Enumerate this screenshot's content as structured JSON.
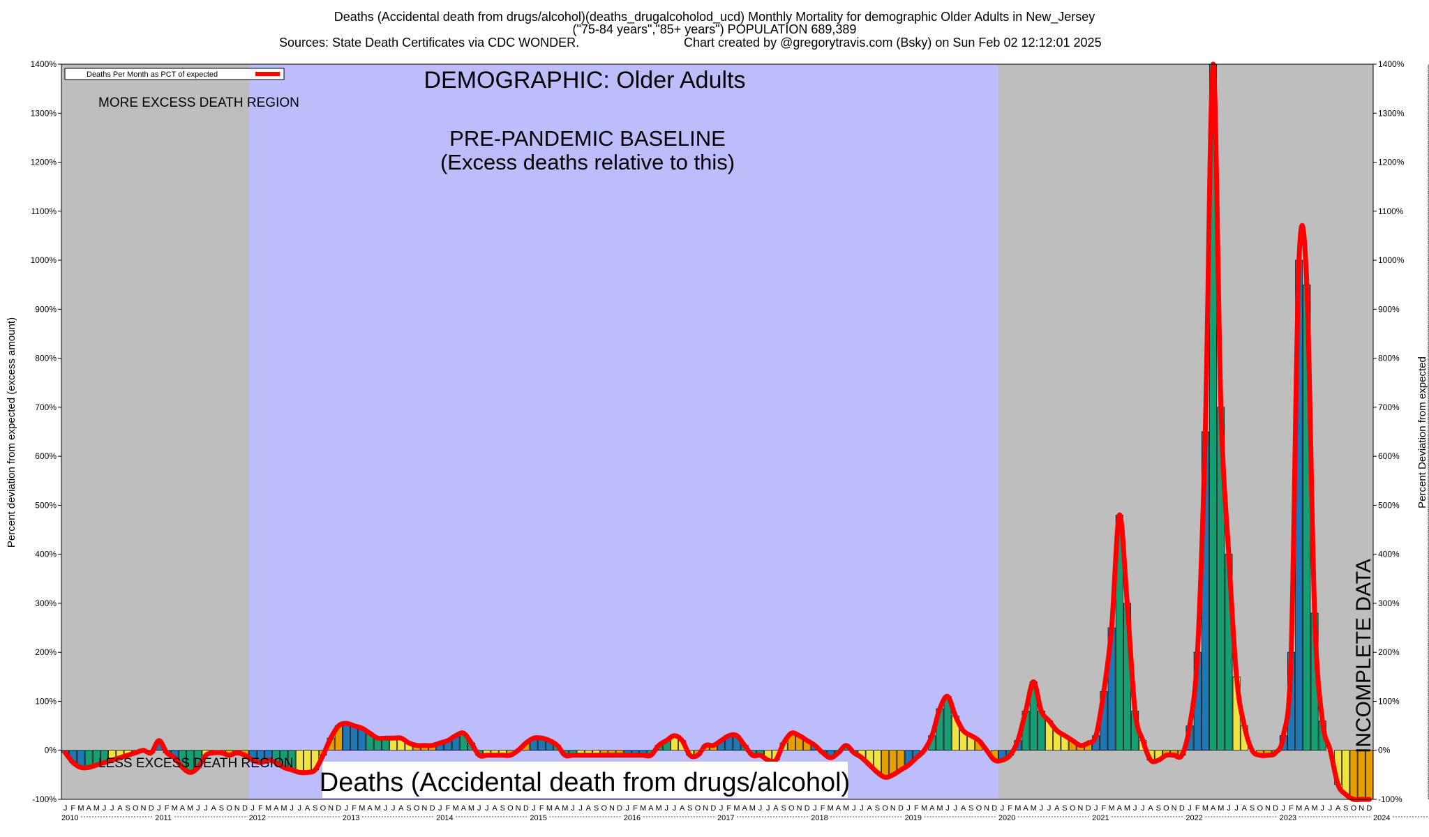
{
  "header": {
    "line1": "Deaths (Accidental death from drugs/alcohol)(deaths_drugalcoholod_ucd) Monthly Mortality for demographic Older Adults in New_Jersey",
    "line2": "(\"75-84 years\",\"85+ years\") POPULATION 689,389",
    "line3_left": "Sources: State Death Certificates via CDC WONDER.",
    "line3_right": "Chart created by @gregorytravis.com (Bsky) on Sun Feb 02 12:12:01 2025"
  },
  "annotations": {
    "demographic": "DEMOGRAPHIC: Older Adults",
    "baseline_line1": "PRE-PANDEMIC BASELINE",
    "baseline_line2": "(Excess deaths relative to this)",
    "more_excess": "MORE EXCESS DEATH REGION",
    "less_excess": "LESS EXCESS DEATH REGION",
    "incomplete": "INCOMPLETE DATA",
    "cause_label": "Deaths (Accidental death from drugs/alcohol)"
  },
  "legend": {
    "label": "Deaths Per Month as PCT of expected"
  },
  "colors": {
    "gray_region": "#bebebe",
    "baseline_region": "#bdbdfb",
    "line": "#ff0000",
    "bar_green": "#179e73",
    "bar_blue": "#1f78b4",
    "bar_orange": "#e69f00",
    "bar_yellow": "#f0e442"
  },
  "chart_data": {
    "type": "bar",
    "title": "Deaths (Accidental death from drugs/alcohol)(deaths_drugalcoholod_ucd) Monthly Mortality for demographic Older Adults in New_Jersey",
    "ylabel_left": "Percent deviation from expected (excess amount)",
    "ylabel_right": "Percent Deviation from expected",
    "ylim": [
      -100,
      1400
    ],
    "y_ticks": [
      -100,
      0,
      100,
      200,
      300,
      400,
      500,
      600,
      700,
      800,
      900,
      1000,
      1100,
      1200,
      1300,
      1400
    ],
    "y_tick_suffix": "%",
    "x_start": "2010-01",
    "month_letters": [
      "J",
      "F",
      "M",
      "A",
      "M",
      "J",
      "J",
      "A",
      "S",
      "O",
      "N",
      "D"
    ],
    "years": [
      "2010",
      "2011",
      "2012",
      "2013",
      "2014",
      "2015",
      "2016",
      "2017",
      "2018",
      "2019",
      "2020",
      "2021",
      "2022",
      "2023",
      "2024"
    ],
    "baseline_region": [
      "2012-01",
      "2019-12"
    ],
    "incomplete_region": [
      "2024-08",
      "2024-12"
    ],
    "values": [
      -5,
      -25,
      -35,
      -35,
      -30,
      -25,
      -20,
      -15,
      -10,
      -5,
      0,
      -5,
      20,
      -5,
      -15,
      -35,
      -45,
      -35,
      -10,
      -5,
      -5,
      -10,
      -5,
      -10,
      -20,
      -25,
      -20,
      -25,
      -35,
      -40,
      -45,
      -45,
      -40,
      -10,
      25,
      50,
      55,
      50,
      45,
      35,
      25,
      25,
      25,
      25,
      15,
      10,
      10,
      10,
      15,
      20,
      30,
      35,
      15,
      -10,
      -10,
      -10,
      -10,
      -10,
      0,
      15,
      25,
      25,
      20,
      10,
      -10,
      -10,
      -10,
      -10,
      -10,
      -10,
      -10,
      -10,
      -10,
      -10,
      -10,
      -10,
      10,
      20,
      30,
      20,
      -10,
      -10,
      10,
      10,
      20,
      30,
      30,
      10,
      -10,
      -10,
      -20,
      -20,
      15,
      35,
      30,
      20,
      10,
      -5,
      -15,
      -5,
      10,
      -5,
      -15,
      -30,
      -45,
      -55,
      -50,
      -40,
      -30,
      -15,
      0,
      30,
      85,
      110,
      70,
      40,
      30,
      20,
      0,
      -20,
      -20,
      -10,
      20,
      80,
      140,
      80,
      60,
      40,
      30,
      20,
      10,
      15,
      30,
      120,
      250,
      480,
      300,
      80,
      20,
      -20,
      -20,
      -10,
      -10,
      -10,
      50,
      200,
      650,
      1400,
      700,
      400,
      150,
      50,
      0,
      -10,
      -10,
      -5,
      30,
      200,
      1000,
      950,
      280,
      60,
      0,
      -70,
      -90,
      -100,
      -100,
      -100
    ]
  }
}
